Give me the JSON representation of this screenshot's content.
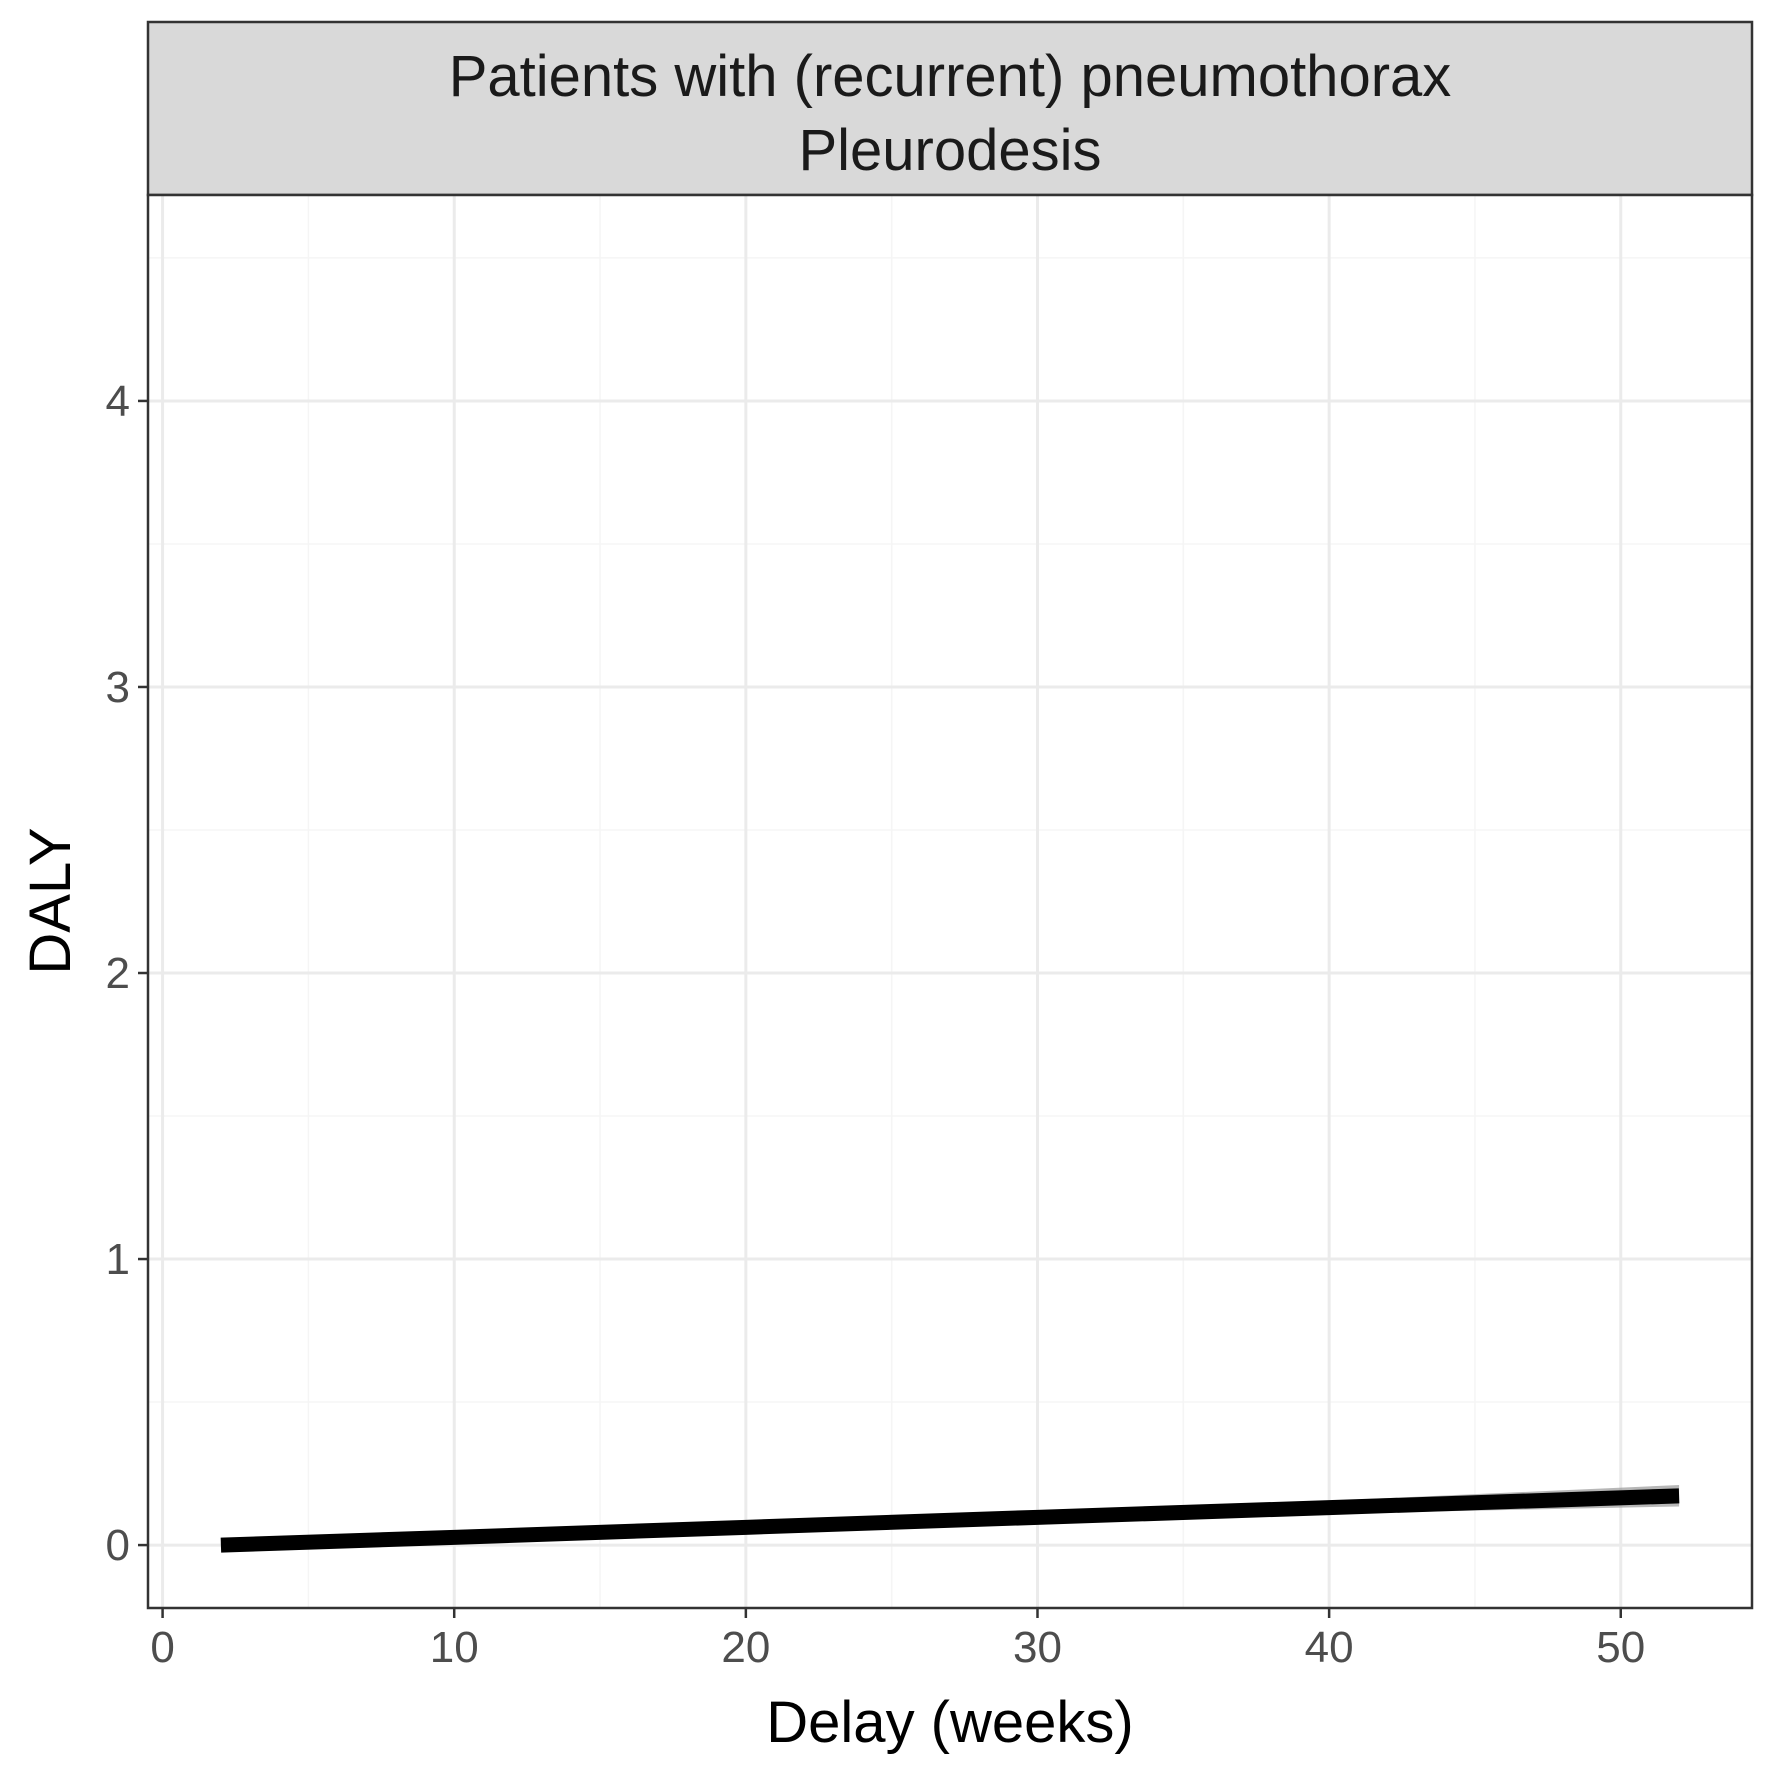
{
  "chart_data": {
    "type": "line",
    "facet_strip": {
      "line1": "Patients with (recurrent) pneumothorax",
      "line2": "Pleurodesis"
    },
    "xlabel": "Delay (weeks)",
    "ylabel": "DALY",
    "xlim": [
      -0.5,
      54.5
    ],
    "ylim": [
      -0.22,
      4.72
    ],
    "x_ticks": [
      0,
      10,
      20,
      30,
      40,
      50
    ],
    "x_tick_labels": [
      "0",
      "10",
      "20",
      "30",
      "40",
      "50"
    ],
    "y_ticks": [
      0,
      1,
      2,
      3,
      4
    ],
    "y_tick_labels": [
      "0",
      "1",
      "2",
      "3",
      "4"
    ],
    "x_minor": [
      5,
      15,
      25,
      35,
      45
    ],
    "y_minor": [
      0.5,
      1.5,
      2.5,
      3.5,
      4.5
    ],
    "grid": true,
    "legend": "none",
    "series": [
      {
        "x": [
          2,
          10,
          20,
          30,
          40,
          52
        ],
        "y": [
          0.0,
          0.027,
          0.062,
          0.097,
          0.131,
          0.172
        ],
        "ci_lower": [
          -0.01,
          0.02,
          0.05,
          0.08,
          0.11,
          0.135
        ],
        "ci_upper": [
          0.01,
          0.035,
          0.075,
          0.115,
          0.155,
          0.21
        ],
        "color": "#000000",
        "ci_color": "#999999"
      }
    ],
    "colors": {
      "strip_fill": "#d9d9d9",
      "panel_border": "#333333",
      "grid_major": "#ebebeb",
      "grid_minor": "#f5f5f5"
    }
  }
}
